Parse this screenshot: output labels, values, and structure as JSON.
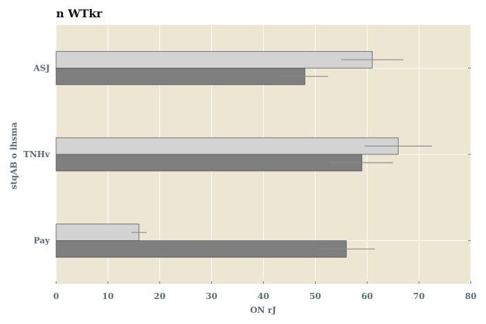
{
  "chart_data": {
    "type": "bar",
    "orientation": "horizontal",
    "title": "n  WTkr",
    "xlabel": "ON rJ",
    "ylabel": "stqAB o lhsma",
    "categories": [
      "ASJ",
      "TNHv",
      "Pay"
    ],
    "series": [
      {
        "values": [
          61,
          66,
          16
        ],
        "errors": [
          6,
          6.5,
          1.5
        ],
        "color": "#d3d3d3"
      },
      {
        "values": [
          48,
          59,
          56
        ],
        "errors": [
          4.5,
          6,
          5.5
        ],
        "color": "#7f7f7f"
      }
    ],
    "xlim": [
      0,
      80
    ],
    "xticks": [
      "0",
      "10",
      "20",
      "30",
      "40",
      "50",
      "60",
      "70",
      "80"
    ],
    "grid": true,
    "legend": "none",
    "colors": {
      "background": "#ede6d3",
      "grid": "#ffffff",
      "axis_text": "#5b6b74"
    }
  }
}
